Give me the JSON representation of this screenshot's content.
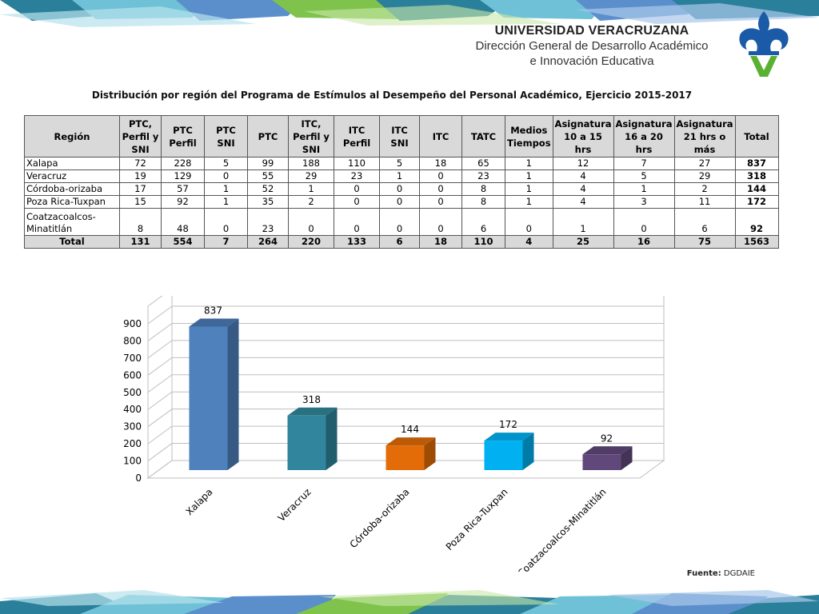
{
  "header": {
    "university": "UNIVERSIDAD VERACRUZANA",
    "department_line1": "Dirección General de Desarrollo Académico",
    "department_line2": "e Innovación Educativa"
  },
  "table_title": "Distribución por región del Programa de Estímulos al Desempeño del Personal Académico, Ejercicio 2015-2017",
  "table": {
    "headers": [
      "Región",
      "PTC, Perfil y SNI",
      "PTC Perfil",
      "PTC SNI",
      "PTC",
      "ITC, Perfil y SNI",
      "ITC Perfil",
      "ITC SNI",
      "ITC",
      "TATC",
      "Medios Tiempos",
      "Asignatura 10  a 15 hrs",
      "Asignatura 16 a 20 hrs",
      "Asignatura 21 hrs o más",
      "Total"
    ],
    "rows": [
      [
        "Xalapa",
        "72",
        "228",
        "5",
        "99",
        "188",
        "110",
        "5",
        "18",
        "65",
        "1",
        "12",
        "7",
        "27",
        "837"
      ],
      [
        "Veracruz",
        "19",
        "129",
        "0",
        "55",
        "29",
        "23",
        "1",
        "0",
        "23",
        "1",
        "4",
        "5",
        "29",
        "318"
      ],
      [
        "Córdoba-orizaba",
        "17",
        "57",
        "1",
        "52",
        "1",
        "0",
        "0",
        "0",
        "8",
        "1",
        "4",
        "1",
        "2",
        "144"
      ],
      [
        "Poza  Rica-Tuxpan",
        "15",
        "92",
        "1",
        "35",
        "2",
        "0",
        "0",
        "0",
        "8",
        "1",
        "4",
        "3",
        "11",
        "172"
      ],
      [
        "Coatzacoalcos-Minatitlán",
        "8",
        "48",
        "0",
        "23",
        "0",
        "0",
        "0",
        "0",
        "6",
        "0",
        "1",
        "0",
        "6",
        "92"
      ]
    ],
    "total_row": [
      "Total",
      "131",
      "554",
      "7",
      "264",
      "220",
      "133",
      "6",
      "18",
      "110",
      "4",
      "25",
      "16",
      "75",
      "1563"
    ]
  },
  "chart_data": {
    "type": "bar",
    "title": "",
    "xlabel": "",
    "ylabel": "",
    "categories": [
      "Xalapa",
      "Veracruz",
      "Córdoba-orizaba",
      "Poza  Rica-Tuxpan",
      "Coatzacoalcos-Minatitlán"
    ],
    "values": [
      837,
      318,
      144,
      172,
      92
    ],
    "ylim": [
      0,
      900
    ],
    "yticks": [
      0,
      100,
      200,
      300,
      400,
      500,
      600,
      700,
      800,
      900
    ],
    "grid": true,
    "three_d": true,
    "bar_colors": [
      "#4f81bd",
      "#31859c",
      "#e36c09",
      "#00b0f0",
      "#60497a"
    ],
    "bar_side_colors": [
      "#375a85",
      "#215d6d",
      "#9e4b06",
      "#007ba8",
      "#433355"
    ],
    "bar_top_colors": [
      "#3f679a",
      "#277181",
      "#bd5a07",
      "#0094cb",
      "#503c66"
    ]
  },
  "source": {
    "label": "Fuente:",
    "value": "DGDAIE"
  },
  "colors": {
    "band_dark": "#1f6f8b",
    "band_light": "#74c4d8",
    "band_green": "#6db33f",
    "band_blue": "#5b8cc9",
    "logo_blue": "#1a5aa6",
    "logo_green": "#5ab030"
  }
}
